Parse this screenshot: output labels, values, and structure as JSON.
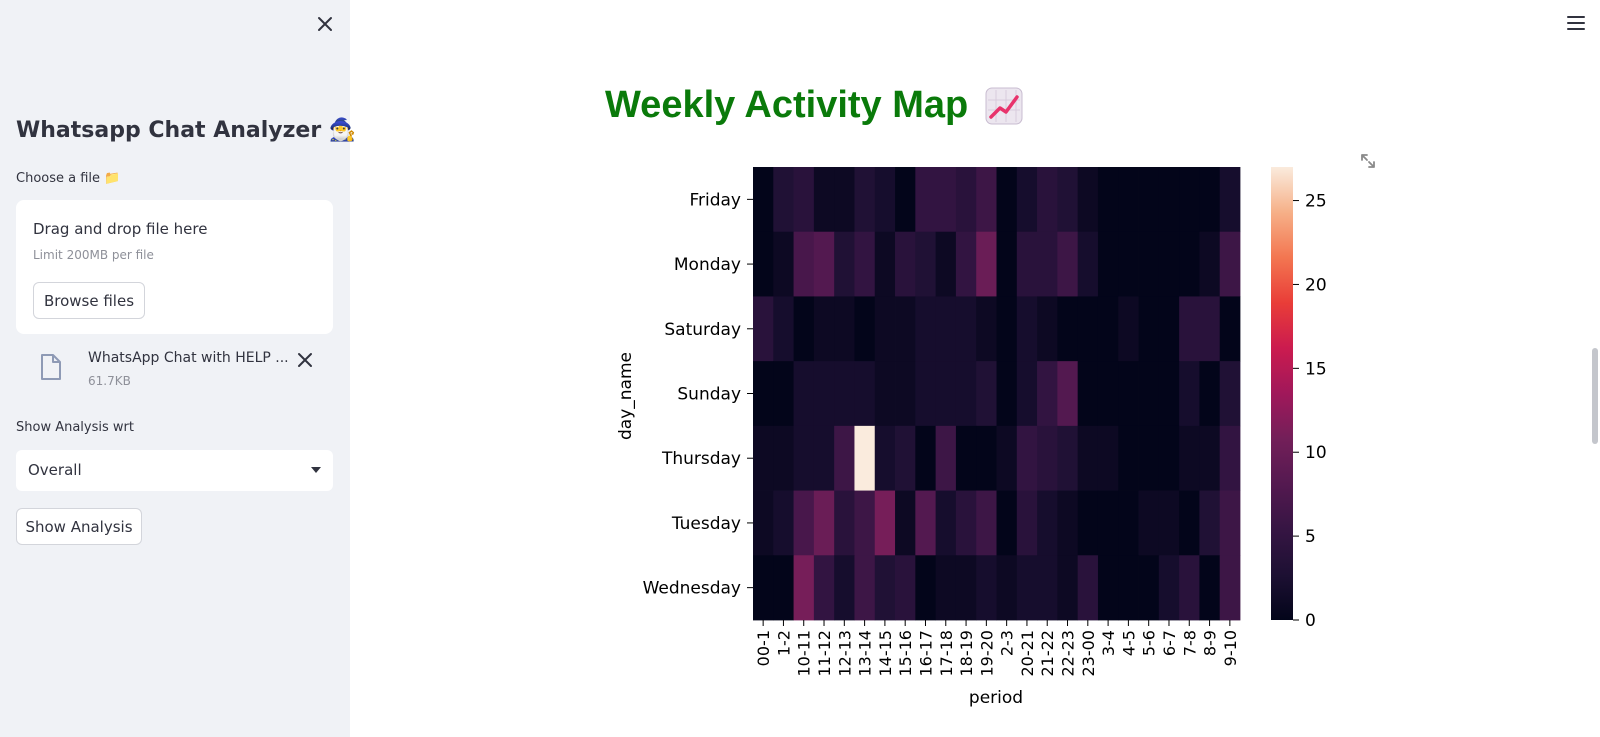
{
  "sidebar": {
    "title": "Whatsapp Chat Analyzer 🧙‍♂️",
    "choose_label": "Choose a file 📁",
    "uploader": {
      "drag_text": "Drag and drop file here",
      "limit_text": "Limit 200MB per file",
      "browse_label": "Browse files"
    },
    "file": {
      "name": "WhatsApp Chat with HELP ...",
      "size": "61.7KB"
    },
    "analysis_label": "Show Analysis wrt",
    "select_value": "Overall",
    "show_button": "Show Analysis"
  },
  "main": {
    "title": "Weekly Activity Map"
  },
  "colors": {
    "sidebar_bg": "#f0f2f6",
    "title_green": "#0a7a0a"
  },
  "chart_data": {
    "type": "heatmap",
    "xlabel": "period",
    "ylabel": "day_name",
    "x_categories": [
      "00-1",
      "1-2",
      "10-11",
      "11-12",
      "12-13",
      "13-14",
      "14-15",
      "15-16",
      "16-17",
      "17-18",
      "18-19",
      "19-20",
      "2-3",
      "20-21",
      "21-22",
      "22-23",
      "23-00",
      "3-4",
      "4-5",
      "5-6",
      "6-7",
      "7-8",
      "8-9",
      "9-10"
    ],
    "y_categories": [
      "Friday",
      "Monday",
      "Saturday",
      "Sunday",
      "Thursday",
      "Tuesday",
      "Wednesday"
    ],
    "values": [
      [
        0,
        3,
        4,
        1,
        1,
        3,
        2,
        0,
        5,
        5,
        4,
        6,
        0,
        2,
        4,
        3,
        1,
        0,
        0,
        0,
        0,
        0,
        0,
        2
      ],
      [
        0,
        1,
        7,
        8,
        3,
        5,
        1,
        4,
        3,
        1,
        5,
        10,
        0,
        4,
        4,
        6,
        2,
        0,
        0,
        0,
        0,
        0,
        1,
        6
      ],
      [
        4,
        2,
        0,
        1,
        1,
        0,
        1,
        1,
        2,
        2,
        2,
        1,
        0,
        2,
        1,
        0,
        0,
        0,
        1,
        0,
        0,
        4,
        4,
        0
      ],
      [
        0,
        0,
        2,
        2,
        2,
        2,
        1,
        1,
        2,
        2,
        2,
        3,
        0,
        2,
        5,
        8,
        0,
        0,
        0,
        0,
        0,
        2,
        0,
        3
      ],
      [
        1,
        1,
        2,
        2,
        6,
        27,
        2,
        3,
        0,
        6,
        0,
        0,
        1,
        5,
        4,
        3,
        1,
        1,
        0,
        0,
        0,
        1,
        1,
        5
      ],
      [
        1,
        2,
        7,
        10,
        4,
        6,
        11,
        1,
        8,
        2,
        4,
        6,
        0,
        4,
        2,
        1,
        0,
        0,
        0,
        1,
        1,
        0,
        3,
        6
      ],
      [
        0,
        0,
        11,
        5,
        2,
        6,
        3,
        4,
        0,
        1,
        1,
        2,
        1,
        2,
        2,
        1,
        4,
        0,
        0,
        0,
        2,
        4,
        0,
        6
      ]
    ],
    "colorbar": {
      "range": [
        0,
        27
      ],
      "ticks": [
        0,
        5,
        10,
        15,
        20,
        25
      ],
      "colormap": "rocket"
    }
  }
}
